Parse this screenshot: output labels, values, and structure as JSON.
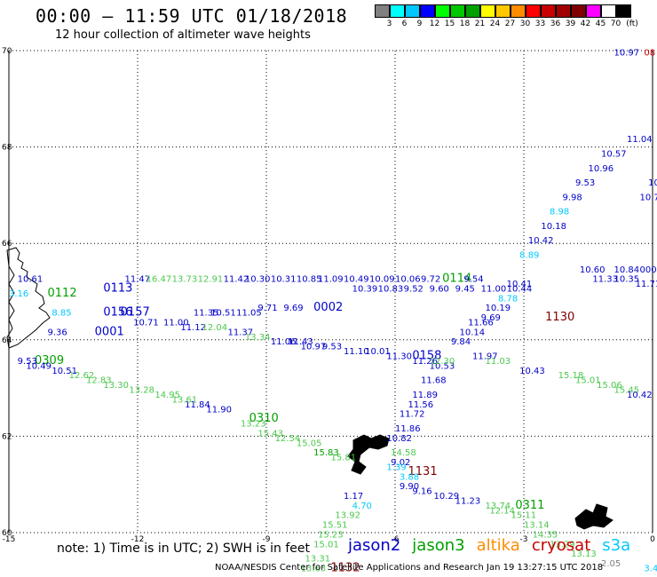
{
  "title": "00:00 – 11:59 UTC 01/18/2018",
  "subtitle": "12 hour collection of altimeter wave heights",
  "colorbar": {
    "unit": "(ft)",
    "colors": [
      "#808080",
      "#00ffff",
      "#00c8ff",
      "#0000ff",
      "#00ff00",
      "#00c800",
      "#00a000",
      "#ffff00",
      "#ffc800",
      "#ff8c00",
      "#ff0000",
      "#c80000",
      "#a00000",
      "#800000",
      "#ff00ff",
      "#ffffff",
      "#000000"
    ],
    "labels": [
      "3",
      "6",
      "9",
      "12",
      "15",
      "18",
      "21",
      "24",
      "27",
      "30",
      "33",
      "36",
      "39",
      "42",
      "45",
      "70"
    ]
  },
  "map": {
    "lon_ticks": [
      "-15",
      "-12",
      "-9",
      "-6",
      "-3",
      "0"
    ],
    "lat_ticks": [
      "70",
      "68",
      "66",
      "64",
      "62",
      "60"
    ],
    "lon_range": [
      -15,
      0
    ],
    "lat_range": [
      60,
      70
    ],
    "gridlines": "dotted",
    "series_colors": {
      "jason2": "#0000c8",
      "jason3": "#00a000",
      "jason3_light": "#4cc84c",
      "altika": "#ff8c00",
      "cryosat": "#c80000",
      "s3a": "#00c8ff",
      "grey": "#808080",
      "darkred": "#800000"
    },
    "observations": [
      {
        "text": "10.97",
        "lon": -0.9,
        "lat": 69.9,
        "c": "jason2"
      },
      {
        "text": "08",
        "lon": -0.2,
        "lat": 69.9,
        "c": "cryosat"
      },
      {
        "text": "10",
        "lon": -0.1,
        "lat": 67.2,
        "c": "jason2"
      },
      {
        "text": "10.7",
        "lon": -0.3,
        "lat": 66.9,
        "c": "jason2"
      },
      {
        "text": "11.04",
        "lon": -0.6,
        "lat": 68.1,
        "c": "jason2"
      },
      {
        "text": "10.57",
        "lon": -1.2,
        "lat": 67.8,
        "c": "jason2"
      },
      {
        "text": "10.96",
        "lon": -1.5,
        "lat": 67.5,
        "c": "jason2"
      },
      {
        "text": "9.53",
        "lon": -1.8,
        "lat": 67.2,
        "c": "jason2"
      },
      {
        "text": "9.98",
        "lon": -2.1,
        "lat": 66.9,
        "c": "jason2"
      },
      {
        "text": "8.98",
        "lon": -2.4,
        "lat": 66.6,
        "c": "s3a"
      },
      {
        "text": "10.18",
        "lon": -2.6,
        "lat": 66.3,
        "c": "jason2"
      },
      {
        "text": "10.42",
        "lon": -2.9,
        "lat": 66.0,
        "c": "jason2"
      },
      {
        "text": "8.89",
        "lon": -3.1,
        "lat": 65.7,
        "c": "s3a"
      },
      {
        "text": "11.33",
        "lon": -1.4,
        "lat": 65.2,
        "c": "jason2"
      },
      {
        "text": "10.35",
        "lon": -0.9,
        "lat": 65.2,
        "c": "jason2"
      },
      {
        "text": "11.71",
        "lon": -0.4,
        "lat": 65.1,
        "c": "jason2"
      },
      {
        "text": "10.84",
        "lon": -0.9,
        "lat": 65.4,
        "c": "jason2"
      },
      {
        "text": "000",
        "lon": -0.3,
        "lat": 65.4,
        "c": "jason2"
      },
      {
        "text": "10.60",
        "lon": -1.7,
        "lat": 65.4,
        "c": "jason2"
      },
      {
        "text": "10.41",
        "lon": -3.4,
        "lat": 65.1,
        "c": "jason2"
      },
      {
        "text": "8.78",
        "lon": -3.6,
        "lat": 64.8,
        "c": "s3a"
      },
      {
        "text": "10.19",
        "lon": -3.9,
        "lat": 64.6,
        "c": "jason2"
      },
      {
        "text": "9.69",
        "lon": -4.0,
        "lat": 64.4,
        "c": "jason2"
      },
      {
        "text": "1130",
        "lon": -2.5,
        "lat": 64.4,
        "c": "darkred",
        "tm": true
      },
      {
        "text": "11.66",
        "lon": -4.3,
        "lat": 64.3,
        "c": "jason2"
      },
      {
        "text": "10.14",
        "lon": -4.5,
        "lat": 64.1,
        "c": "jason2"
      },
      {
        "text": "9.84",
        "lon": -4.7,
        "lat": 63.9,
        "c": "jason2"
      },
      {
        "text": "11.97",
        "lon": -4.2,
        "lat": 63.6,
        "c": "jason2"
      },
      {
        "text": "11.03",
        "lon": -3.9,
        "lat": 63.5,
        "c": "jason3_light"
      },
      {
        "text": "10.43",
        "lon": -3.1,
        "lat": 63.3,
        "c": "jason2"
      },
      {
        "text": "15.18",
        "lon": -2.2,
        "lat": 63.2,
        "c": "jason3_light"
      },
      {
        "text": "15.01",
        "lon": -1.8,
        "lat": 63.1,
        "c": "jason3_light"
      },
      {
        "text": "15.06",
        "lon": -1.3,
        "lat": 63.0,
        "c": "jason3_light"
      },
      {
        "text": "15.45",
        "lon": -0.9,
        "lat": 62.9,
        "c": "jason3_light"
      },
      {
        "text": "10.42",
        "lon": -0.6,
        "lat": 62.8,
        "c": "jason2"
      },
      {
        "text": "10.53",
        "lon": -5.2,
        "lat": 63.4,
        "c": "jason2"
      },
      {
        "text": "11.68",
        "lon": -5.4,
        "lat": 63.1,
        "c": "jason2"
      },
      {
        "text": "11.89",
        "lon": -5.6,
        "lat": 62.8,
        "c": "jason2"
      },
      {
        "text": "11.56",
        "lon": -5.7,
        "lat": 62.6,
        "c": "jason2"
      },
      {
        "text": "11.72",
        "lon": -5.9,
        "lat": 62.4,
        "c": "jason2"
      },
      {
        "text": "11.86",
        "lon": -6.0,
        "lat": 62.1,
        "c": "jason2"
      },
      {
        "text": "10.82",
        "lon": -6.2,
        "lat": 61.9,
        "c": "jason2"
      },
      {
        "text": "14.58",
        "lon": -6.1,
        "lat": 61.6,
        "c": "jason3_light"
      },
      {
        "text": "9.02",
        "lon": -6.1,
        "lat": 61.4,
        "c": "jason2"
      },
      {
        "text": "1131",
        "lon": -5.7,
        "lat": 61.2,
        "c": "darkred",
        "tm": true
      },
      {
        "text": "9.90",
        "lon": -5.9,
        "lat": 60.9,
        "c": "jason2"
      },
      {
        "text": "9.16",
        "lon": -5.6,
        "lat": 60.8,
        "c": "jason2"
      },
      {
        "text": "10.29",
        "lon": -5.1,
        "lat": 60.7,
        "c": "jason2"
      },
      {
        "text": "11.23",
        "lon": -4.6,
        "lat": 60.6,
        "c": "jason2"
      },
      {
        "text": "13.74",
        "lon": -3.9,
        "lat": 60.5,
        "c": "jason3_light"
      },
      {
        "text": "0311",
        "lon": -3.2,
        "lat": 60.5,
        "c": "jason3",
        "tm": true
      },
      {
        "text": "12.14",
        "lon": -3.8,
        "lat": 60.4,
        "c": "jason3_light"
      },
      {
        "text": "15.11",
        "lon": -3.3,
        "lat": 60.3,
        "c": "jason3_light"
      },
      {
        "text": "13.14",
        "lon": -3.0,
        "lat": 60.1,
        "c": "jason3_light"
      },
      {
        "text": "14.35",
        "lon": -2.8,
        "lat": 59.9,
        "c": "jason3_light"
      },
      {
        "text": "13.29",
        "lon": -2.4,
        "lat": 59.7,
        "c": "jason3_light"
      },
      {
        "text": "13.13",
        "lon": -1.9,
        "lat": 59.5,
        "c": "jason3_light"
      },
      {
        "text": "2.05",
        "lon": -1.2,
        "lat": 59.3,
        "c": "grey"
      },
      {
        "text": "3.42",
        "lon": -0.2,
        "lat": 59.2,
        "c": "s3a"
      },
      {
        "text": "4.70",
        "lon": -7.0,
        "lat": 60.5,
        "c": "s3a"
      },
      {
        "text": "1.17",
        "lon": -7.2,
        "lat": 60.7,
        "c": "jason2"
      },
      {
        "text": "13.92",
        "lon": -7.4,
        "lat": 60.3,
        "c": "jason3_light"
      },
      {
        "text": "15.51",
        "lon": -7.7,
        "lat": 60.1,
        "c": "jason3_light"
      },
      {
        "text": "15.23",
        "lon": -7.8,
        "lat": 59.9,
        "c": "jason3_light"
      },
      {
        "text": "15.01",
        "lon": -7.9,
        "lat": 59.7,
        "c": "jason3_light"
      },
      {
        "text": "13.31",
        "lon": -8.1,
        "lat": 59.4,
        "c": "jason3_light"
      },
      {
        "text": "13.63",
        "lon": -8.2,
        "lat": 59.2,
        "c": "jason3_light"
      },
      {
        "text": "1132",
        "lon": -7.5,
        "lat": 59.2,
        "c": "darkred",
        "tm": true
      },
      {
        "text": "1.39",
        "lon": -6.2,
        "lat": 61.3,
        "c": "s3a"
      },
      {
        "text": "3.88",
        "lon": -5.9,
        "lat": 61.1,
        "c": "s3a"
      },
      {
        "text": "15.83",
        "lon": -7.9,
        "lat": 61.6,
        "c": "jason3"
      },
      {
        "text": "15.81",
        "lon": -7.5,
        "lat": 61.5,
        "c": "jason3_light"
      },
      {
        "text": "15.05",
        "lon": -8.3,
        "lat": 61.8,
        "c": "jason3_light"
      },
      {
        "text": "12.54",
        "lon": -8.8,
        "lat": 61.9,
        "c": "jason3_light"
      },
      {
        "text": "15.43",
        "lon": -9.2,
        "lat": 62.0,
        "c": "jason3_light"
      },
      {
        "text": "0310",
        "lon": -9.4,
        "lat": 62.3,
        "c": "jason3",
        "tm": true
      },
      {
        "text": "13.23",
        "lon": -9.6,
        "lat": 62.2,
        "c": "jason3_light"
      },
      {
        "text": "11.90",
        "lon": -10.4,
        "lat": 62.5,
        "c": "jason2"
      },
      {
        "text": "11.84",
        "lon": -10.9,
        "lat": 62.6,
        "c": "jason2"
      },
      {
        "text": "13.61",
        "lon": -11.2,
        "lat": 62.7,
        "c": "jason3_light"
      },
      {
        "text": "14.95",
        "lon": -11.6,
        "lat": 62.8,
        "c": "jason3_light"
      },
      {
        "text": "13.28",
        "lon": -12.2,
        "lat": 62.9,
        "c": "jason3_light"
      },
      {
        "text": "13.30",
        "lon": -12.8,
        "lat": 63.0,
        "c": "jason3_light"
      },
      {
        "text": "12.83",
        "lon": -13.2,
        "lat": 63.1,
        "c": "jason3_light"
      },
      {
        "text": "12.62",
        "lon": -13.6,
        "lat": 63.2,
        "c": "jason3_light"
      },
      {
        "text": "10.51",
        "lon": -14.0,
        "lat": 63.3,
        "c": "jason2"
      },
      {
        "text": "0309",
        "lon": -14.4,
        "lat": 63.5,
        "c": "jason3",
        "tm": true
      },
      {
        "text": "9.53",
        "lon": -14.8,
        "lat": 63.5,
        "c": "jason2"
      },
      {
        "text": "10.49",
        "lon": -14.6,
        "lat": 63.4,
        "c": "jason2"
      },
      {
        "text": "9.36",
        "lon": -14.1,
        "lat": 64.1,
        "c": "jason2"
      },
      {
        "text": "0001",
        "lon": -13.0,
        "lat": 64.1,
        "c": "jason2",
        "tm": true
      },
      {
        "text": "8.85",
        "lon": -14.0,
        "lat": 64.5,
        "c": "s3a"
      },
      {
        "text": "0156",
        "lon": -12.8,
        "lat": 64.5,
        "c": "jason2",
        "tm": true
      },
      {
        "text": "0157",
        "lon": -12.4,
        "lat": 64.5,
        "c": "jason2",
        "tm": true
      },
      {
        "text": "10.71",
        "lon": -12.1,
        "lat": 64.3,
        "c": "jason2"
      },
      {
        "text": "11.00",
        "lon": -11.4,
        "lat": 64.3,
        "c": "jason2"
      },
      {
        "text": "11.12",
        "lon": -11.0,
        "lat": 64.2,
        "c": "jason2"
      },
      {
        "text": "12.04",
        "lon": -10.5,
        "lat": 64.2,
        "c": "jason3_light"
      },
      {
        "text": "11.35",
        "lon": -10.7,
        "lat": 64.5,
        "c": "jason2"
      },
      {
        "text": "10.51",
        "lon": -10.3,
        "lat": 64.5,
        "c": "jason2"
      },
      {
        "text": "11.37",
        "lon": -9.9,
        "lat": 64.1,
        "c": "jason2"
      },
      {
        "text": "13.34",
        "lon": -9.5,
        "lat": 64.0,
        "c": "jason3_light"
      },
      {
        "text": "11.05",
        "lon": -9.7,
        "lat": 64.5,
        "c": "jason2"
      },
      {
        "text": "9.71",
        "lon": -9.2,
        "lat": 64.6,
        "c": "jason2"
      },
      {
        "text": "11.06",
        "lon": -8.9,
        "lat": 63.9,
        "c": "jason2"
      },
      {
        "text": "11.43",
        "lon": -8.5,
        "lat": 63.9,
        "c": "jason2"
      },
      {
        "text": "9.69",
        "lon": -8.6,
        "lat": 64.6,
        "c": "jason2"
      },
      {
        "text": "0002",
        "lon": -7.9,
        "lat": 64.6,
        "c": "jason2",
        "tm": true
      },
      {
        "text": "10.97",
        "lon": -8.2,
        "lat": 63.8,
        "c": "jason2"
      },
      {
        "text": "9.53",
        "lon": -7.7,
        "lat": 63.8,
        "c": "jason2"
      },
      {
        "text": "11.10",
        "lon": -7.2,
        "lat": 63.7,
        "c": "jason2"
      },
      {
        "text": "10.01",
        "lon": -6.7,
        "lat": 63.7,
        "c": "jason2"
      },
      {
        "text": "11.30",
        "lon": -6.2,
        "lat": 63.6,
        "c": "jason2"
      },
      {
        "text": "0158",
        "lon": -5.6,
        "lat": 63.6,
        "c": "jason2",
        "tm": true
      },
      {
        "text": "11.26",
        "lon": -5.6,
        "lat": 63.5,
        "c": "jason2"
      },
      {
        "text": "12.30",
        "lon": -5.2,
        "lat": 63.5,
        "c": "jason3_light"
      },
      {
        "text": "10.61",
        "lon": -14.8,
        "lat": 65.2,
        "c": "jason2"
      },
      {
        "text": "3.16",
        "lon": -15.0,
        "lat": 64.9,
        "c": "s3a"
      },
      {
        "text": "0112",
        "lon": -14.1,
        "lat": 64.9,
        "c": "jason3",
        "tm": true
      },
      {
        "text": "0113",
        "lon": -12.8,
        "lat": 65.0,
        "c": "jason2",
        "tm": true
      },
      {
        "text": "11.47",
        "lon": -12.3,
        "lat": 65.2,
        "c": "jason2"
      },
      {
        "text": "16.47",
        "lon": -11.8,
        "lat": 65.2,
        "c": "jason3_light"
      },
      {
        "text": "13.73",
        "lon": -11.2,
        "lat": 65.2,
        "c": "jason3_light"
      },
      {
        "text": "12.91",
        "lon": -10.6,
        "lat": 65.2,
        "c": "jason3_light"
      },
      {
        "text": "11.42",
        "lon": -10.0,
        "lat": 65.2,
        "c": "jason2"
      },
      {
        "text": "10.30",
        "lon": -9.5,
        "lat": 65.2,
        "c": "jason2"
      },
      {
        "text": "10.31",
        "lon": -8.9,
        "lat": 65.2,
        "c": "jason2"
      },
      {
        "text": "10.85",
        "lon": -8.3,
        "lat": 65.2,
        "c": "jason2"
      },
      {
        "text": "11.09",
        "lon": -7.8,
        "lat": 65.2,
        "c": "jason2"
      },
      {
        "text": "10.49",
        "lon": -7.2,
        "lat": 65.2,
        "c": "jason2"
      },
      {
        "text": "10.09",
        "lon": -6.6,
        "lat": 65.2,
        "c": "jason2"
      },
      {
        "text": "10.06",
        "lon": -6.0,
        "lat": 65.2,
        "c": "jason2"
      },
      {
        "text": "9.72",
        "lon": -5.4,
        "lat": 65.2,
        "c": "jason2"
      },
      {
        "text": "0114",
        "lon": -4.9,
        "lat": 65.2,
        "c": "jason3",
        "tm": true
      },
      {
        "text": "9.54",
        "lon": -4.4,
        "lat": 65.2,
        "c": "jason2"
      },
      {
        "text": "10.39",
        "lon": -7.0,
        "lat": 65.0,
        "c": "jason2"
      },
      {
        "text": "10.83",
        "lon": -6.4,
        "lat": 65.0,
        "c": "jason2"
      },
      {
        "text": "9.52",
        "lon": -5.8,
        "lat": 65.0,
        "c": "jason2"
      },
      {
        "text": "9.60",
        "lon": -5.2,
        "lat": 65.0,
        "c": "jason2"
      },
      {
        "text": "9.45",
        "lon": -4.6,
        "lat": 65.0,
        "c": "jason2"
      },
      {
        "text": "11.00",
        "lon": -4.0,
        "lat": 65.0,
        "c": "jason2"
      },
      {
        "text": "10.44",
        "lon": -3.4,
        "lat": 65.0,
        "c": "jason2"
      }
    ],
    "note": "note:  1) Time is in UTC;  2) SWH is in feet",
    "legend": [
      {
        "name": "jason2",
        "color": "#0000c8"
      },
      {
        "name": "jason3",
        "color": "#00a000"
      },
      {
        "name": "altika",
        "color": "#ff8c00"
      },
      {
        "name": "cryosat",
        "color": "#c80000"
      },
      {
        "name": "s3a",
        "color": "#00c8ff"
      }
    ],
    "footer": "NOAA/NESDIS Center for Satellite Applications and Research    Jan 19 13:27:15 UTC 2018"
  }
}
